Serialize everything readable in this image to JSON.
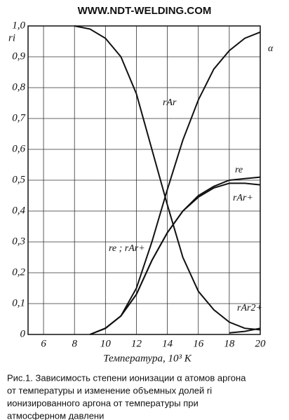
{
  "chart_data": {
    "type": "line",
    "header": "WWW.NDT-WELDING.COM",
    "ylabel": "ri",
    "xlabel": "Температура, 10³ K",
    "caption": [
      "Рис.1. Зависимость степени ионизации α атомов аргона",
      "от температуры и изменение объемных долей ri",
      "ионизированного аргона от температуры при",
      "атмосферном давлени"
    ],
    "xlim": [
      5,
      20
    ],
    "xticks": [
      6,
      8,
      10,
      12,
      14,
      16,
      18,
      20
    ],
    "ylim": [
      0,
      1
    ],
    "yticks": [
      0,
      {
        "value": 0.1,
        "label": "0,1"
      },
      {
        "value": 0.2,
        "label": "0,2"
      },
      {
        "value": 0.3,
        "label": "0,3"
      },
      {
        "value": 0.4,
        "label": "0,4"
      },
      {
        "value": 0.5,
        "label": "0,5"
      },
      {
        "value": 0.6,
        "label": "0,6"
      },
      {
        "value": 0.7,
        "label": "0,7"
      },
      {
        "value": 0.8,
        "label": "0,8"
      },
      {
        "value": 0.9,
        "label": "0,9"
      },
      {
        "value": 1.0,
        "label": "1,0"
      }
    ],
    "grid": true,
    "x": [
      8,
      9,
      10,
      11,
      12,
      13,
      14,
      15,
      16,
      17,
      18,
      19,
      20
    ],
    "series": [
      {
        "name": "rAr",
        "color": "#111",
        "values": [
          1.0,
          0.99,
          0.96,
          0.9,
          0.78,
          0.6,
          0.42,
          0.25,
          0.14,
          0.08,
          0.04,
          0.02,
          0.015
        ]
      },
      {
        "name": "α",
        "color": "#111",
        "values": [
          null,
          0,
          0.02,
          0.06,
          0.15,
          0.3,
          0.47,
          0.63,
          0.76,
          0.86,
          0.92,
          0.96,
          0.98
        ]
      },
      {
        "name": "re",
        "color": "#111",
        "values": [
          null,
          0,
          0.02,
          0.06,
          0.13,
          0.24,
          0.33,
          0.4,
          0.45,
          0.48,
          0.5,
          0.505,
          0.51
        ]
      },
      {
        "name": "rAr+",
        "color": "#111",
        "values": [
          null,
          0,
          0.02,
          0.06,
          0.13,
          0.24,
          0.33,
          0.4,
          0.445,
          0.475,
          0.49,
          0.49,
          0.485
        ]
      },
      {
        "name": "rAr2+",
        "color": "#111",
        "values": [
          null,
          null,
          null,
          null,
          null,
          null,
          null,
          null,
          null,
          null,
          0.005,
          0.01,
          0.02
        ]
      }
    ],
    "annotation": "re ; rAr+"
  }
}
